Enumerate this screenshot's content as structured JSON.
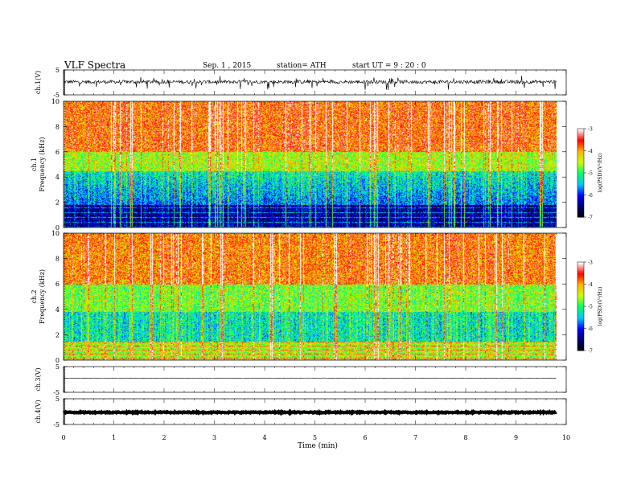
{
  "header": {
    "title": "VLF  Spectra",
    "date": "Sep. 1 , 2015",
    "station": "station= ATH",
    "start": "start  UT  =   9 : 20 : 0"
  },
  "chart_data": [
    {
      "type": "line",
      "panel": "ch1-waveform",
      "ylabel": "ch.1(V)",
      "ylim": [
        -5,
        5
      ],
      "y_ticks": [
        "5",
        "-5"
      ],
      "xlim": [
        0,
        10
      ],
      "signal_end_min": 9.8,
      "baseline": 0.2,
      "noise_amplitude": 1.4
    },
    {
      "type": "heatmap",
      "panel": "ch1-spectrogram",
      "ylabel": "ch.1\nFrequency  (kHz)",
      "ylim": [
        0,
        10
      ],
      "y_ticks": [
        "0",
        "2",
        "4",
        "6",
        "8",
        "10"
      ],
      "xlim": [
        0,
        10
      ],
      "data_end_min": 9.8,
      "colorbar": {
        "label": "log(PSD)(V²/Hz)",
        "range": [
          -7,
          -3
        ],
        "ticks": [
          "-3",
          "-4",
          "-5",
          "-6",
          "-7"
        ]
      }
    },
    {
      "type": "heatmap",
      "panel": "ch2-spectrogram",
      "ylabel": "ch.2\nFrequency  (kHz)",
      "ylim": [
        0,
        10
      ],
      "y_ticks": [
        "0",
        "2",
        "4",
        "6",
        "8",
        "10"
      ],
      "xlim": [
        0,
        10
      ],
      "data_end_min": 9.8,
      "colorbar": {
        "label": "log(PSD)(V²/Hz)",
        "range": [
          -7,
          -3
        ],
        "ticks": [
          "-3",
          "-4",
          "-5",
          "-6",
          "-7"
        ]
      }
    },
    {
      "type": "line",
      "panel": "ch3-waveform",
      "ylabel": "ch.3(V)",
      "ylim": [
        -5,
        5
      ],
      "y_ticks": [
        "5",
        "-5"
      ],
      "xlim": [
        0,
        10
      ],
      "signal_end_min": 9.8,
      "baseline": 0.5,
      "noise_amplitude": 0.15
    },
    {
      "type": "line",
      "panel": "ch4-waveform",
      "ylabel": "ch.4(V)",
      "ylim": [
        -5,
        5
      ],
      "y_ticks": [
        "5",
        "-5"
      ],
      "xlim": [
        0,
        10
      ],
      "signal_end_min": 9.8,
      "baseline": -0.3,
      "noise_amplitude": 0.4
    }
  ],
  "x_axis": {
    "label": "Time  (min)",
    "ticks": [
      "0",
      "1",
      "2",
      "3",
      "4",
      "5",
      "6",
      "7",
      "8",
      "9",
      "10"
    ]
  },
  "colors": {
    "colormap": [
      "#000000",
      "#00006e",
      "#0000ff",
      "#00c8ff",
      "#00ff64",
      "#c8ff00",
      "#ffb400",
      "#ff0000",
      "#ffffff"
    ]
  }
}
